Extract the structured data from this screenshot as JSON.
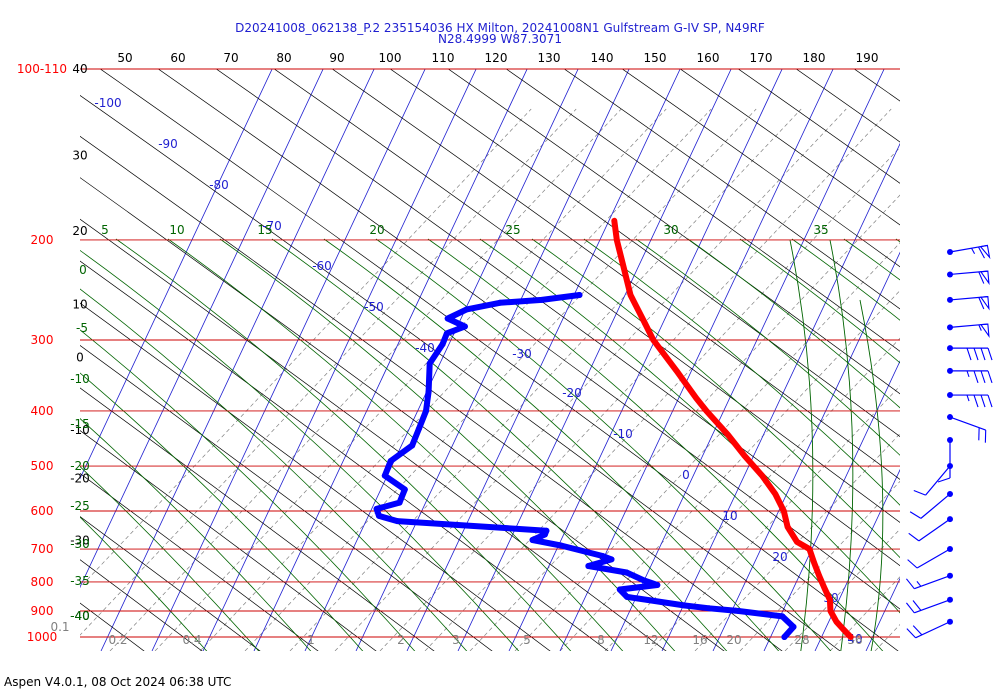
{
  "chart_data": {
    "type": "skew-t",
    "title_line1": "D20241008_062138_P.2 235154036 HX Milton, 20241008N1 Gulfstream G-IV SP, N49RF",
    "title_line2": "N28.4999 W87.3071",
    "footer": "Aspen V4.0.1, 08 Oct 2024  06:38 UTC",
    "pressure_range_hpa": [
      100,
      1000
    ],
    "pressure_labels": [
      {
        "p": 100,
        "text": "100-110"
      },
      {
        "p": 200,
        "text": "200"
      },
      {
        "p": 300,
        "text": "300"
      },
      {
        "p": 400,
        "text": "400"
      },
      {
        "p": 500,
        "text": "500"
      },
      {
        "p": 600,
        "text": "600"
      },
      {
        "p": 700,
        "text": "700"
      },
      {
        "p": 800,
        "text": "800"
      },
      {
        "p": 900,
        "text": "900"
      },
      {
        "p": 1000,
        "text": "1000"
      }
    ],
    "height_labels": [
      {
        "p": 100,
        "text": "40"
      },
      {
        "p": 142,
        "text": "30"
      },
      {
        "p": 193,
        "text": "20"
      },
      {
        "p": 260,
        "text": "10"
      },
      {
        "p": 322,
        "text": "0"
      },
      {
        "p": 432,
        "text": "-10"
      },
      {
        "p": 526,
        "text": "-20"
      },
      {
        "p": 676,
        "text": "-30"
      },
      {
        "p": 918,
        "text": "-40"
      }
    ],
    "top_scale_labels": [
      "50",
      "60",
      "70",
      "80",
      "90",
      "100",
      "110",
      "120",
      "130",
      "140",
      "150",
      "160",
      "170",
      "180",
      "190"
    ],
    "isotherm_labels": [
      "-100",
      "-90",
      "-80",
      "-70",
      "-60",
      "-50",
      "-40",
      "-30",
      "-20",
      "-10",
      "0",
      "10",
      "20",
      "30",
      "40"
    ],
    "dry_adiabat_labels": [
      {
        "p": 200,
        "text": "5"
      },
      {
        "p": 200,
        "text": "10"
      },
      {
        "p": 200,
        "text": "15"
      },
      {
        "p": 200,
        "text": "20"
      },
      {
        "p": 200,
        "text": "25"
      },
      {
        "p": 200,
        "text": "30"
      },
      {
        "p": 200,
        "text": "35"
      },
      {
        "p": 244,
        "text": "0"
      },
      {
        "p": 284,
        "text": "-5"
      },
      {
        "p": 362,
        "text": "-10"
      },
      {
        "p": 440,
        "text": "-15"
      },
      {
        "p": 513,
        "text": "-20"
      },
      {
        "p": 600,
        "text": "-25"
      },
      {
        "p": 700,
        "text": "-30"
      },
      {
        "p": 803,
        "text": "-35"
      },
      {
        "p": 918,
        "text": "-40"
      }
    ],
    "mixing_ratio_labels": [
      "0.1",
      "0.2",
      "0.4",
      "1",
      "2",
      "3",
      "5",
      "8",
      "12",
      "16",
      "20",
      "28",
      "36",
      "40"
    ],
    "temperature_profile": [
      {
        "p": 185,
        "t": -52
      },
      {
        "p": 200,
        "t": -50
      },
      {
        "p": 220,
        "t": -47
      },
      {
        "p": 250,
        "t": -43
      },
      {
        "p": 280,
        "t": -38
      },
      {
        "p": 300,
        "t": -35
      },
      {
        "p": 340,
        "t": -28
      },
      {
        "p": 380,
        "t": -22
      },
      {
        "p": 400,
        "t": -19
      },
      {
        "p": 440,
        "t": -13
      },
      {
        "p": 480,
        "t": -8
      },
      {
        "p": 520,
        "t": -3
      },
      {
        "p": 560,
        "t": 1
      },
      {
        "p": 600,
        "t": 4
      },
      {
        "p": 640,
        "t": 6
      },
      {
        "p": 680,
        "t": 9
      },
      {
        "p": 700,
        "t": 12
      },
      {
        "p": 740,
        "t": 14
      },
      {
        "p": 780,
        "t": 16
      },
      {
        "p": 820,
        "t": 18
      },
      {
        "p": 860,
        "t": 20
      },
      {
        "p": 900,
        "t": 21
      },
      {
        "p": 940,
        "t": 23
      },
      {
        "p": 970,
        "t": 25
      },
      {
        "p": 1000,
        "t": 27
      }
    ],
    "dewpoint_profile": [
      {
        "p": 250,
        "t": -53
      },
      {
        "p": 255,
        "t": -60
      },
      {
        "p": 258,
        "t": -68
      },
      {
        "p": 265,
        "t": -74
      },
      {
        "p": 275,
        "t": -77
      },
      {
        "p": 284,
        "t": -73
      },
      {
        "p": 292,
        "t": -76
      },
      {
        "p": 305,
        "t": -76
      },
      {
        "p": 330,
        "t": -77
      },
      {
        "p": 370,
        "t": -75
      },
      {
        "p": 400,
        "t": -74
      },
      {
        "p": 430,
        "t": -74
      },
      {
        "p": 460,
        "t": -74
      },
      {
        "p": 490,
        "t": -77
      },
      {
        "p": 520,
        "t": -77
      },
      {
        "p": 550,
        "t": -72
      },
      {
        "p": 580,
        "t": -72
      },
      {
        "p": 595,
        "t": -76
      },
      {
        "p": 612,
        "t": -75
      },
      {
        "p": 625,
        "t": -71
      },
      {
        "p": 650,
        "t": -41
      },
      {
        "p": 660,
        "t": -41
      },
      {
        "p": 675,
        "t": -43
      },
      {
        "p": 690,
        "t": -37
      },
      {
        "p": 720,
        "t": -28
      },
      {
        "p": 730,
        "t": -26
      },
      {
        "p": 750,
        "t": -30
      },
      {
        "p": 770,
        "t": -22
      },
      {
        "p": 795,
        "t": -18
      },
      {
        "p": 810,
        "t": -15
      },
      {
        "p": 825,
        "t": -22
      },
      {
        "p": 850,
        "t": -20
      },
      {
        "p": 880,
        "t": -8
      },
      {
        "p": 890,
        "t": -3
      },
      {
        "p": 900,
        "t": 3
      },
      {
        "p": 920,
        "t": 12
      },
      {
        "p": 960,
        "t": 15
      },
      {
        "p": 1000,
        "t": 14
      }
    ],
    "wind_barbs": [
      {
        "p": 210,
        "dir": 260,
        "speed_kt": 65
      },
      {
        "p": 230,
        "dir": 265,
        "speed_kt": 60
      },
      {
        "p": 255,
        "dir": 265,
        "speed_kt": 60
      },
      {
        "p": 285,
        "dir": 265,
        "speed_kt": 55
      },
      {
        "p": 310,
        "dir": 270,
        "speed_kt": 40
      },
      {
        "p": 340,
        "dir": 270,
        "speed_kt": 35
      },
      {
        "p": 375,
        "dir": 270,
        "speed_kt": 35
      },
      {
        "p": 410,
        "dir": 290,
        "speed_kt": 20
      },
      {
        "p": 450,
        "dir": 360,
        "speed_kt": 10
      },
      {
        "p": 500,
        "dir": 40,
        "speed_kt": 10
      },
      {
        "p": 560,
        "dir": 50,
        "speed_kt": 10
      },
      {
        "p": 620,
        "dir": 55,
        "speed_kt": 10
      },
      {
        "p": 700,
        "dir": 60,
        "speed_kt": 10
      },
      {
        "p": 780,
        "dir": 70,
        "speed_kt": 15
      },
      {
        "p": 860,
        "dir": 70,
        "speed_kt": 20
      },
      {
        "p": 940,
        "dir": 65,
        "speed_kt": 20
      }
    ],
    "colors": {
      "temperature": "#ff0000",
      "dewpoint": "#0000ff",
      "isobars": "#cc0000",
      "isotherms": "#1f1fd0",
      "dry_adiabats": "#000000",
      "moist_adiabats": "#006400",
      "mixing_ratio": "#808080",
      "pressure_text": "#ff0000",
      "title": "#1f1fd0"
    }
  }
}
